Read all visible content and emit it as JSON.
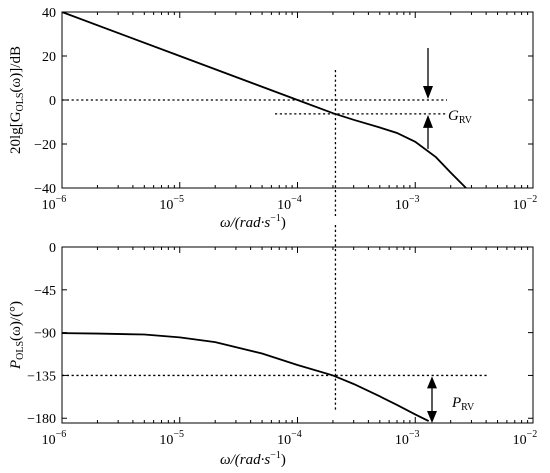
{
  "chart_data": [
    {
      "type": "line",
      "panel": "magnitude",
      "x_scale": "log",
      "xlim": [
        1e-06,
        0.01
      ],
      "ylim": [
        -40,
        40
      ],
      "x_ticks": [
        1e-06,
        1e-05,
        0.0001,
        0.001,
        0.01
      ],
      "x_tick_labels": [
        {
          "base": "10",
          "exp": "−6"
        },
        {
          "base": "10",
          "exp": "−5"
        },
        {
          "base": "10",
          "exp": "−4"
        },
        {
          "base": "10",
          "exp": "−3"
        },
        {
          "base": "10",
          "exp": "−2"
        }
      ],
      "y_ticks": [
        40,
        20,
        0,
        -20,
        -40
      ],
      "y_tick_labels": [
        "40",
        "20",
        "0",
        "−20",
        "−40"
      ],
      "xlabel": {
        "pre": "ω/(rad·s",
        "exp": "−1",
        "post": ")"
      },
      "ylabel": {
        "pre": "20lg[G",
        "sub": "OLS",
        "post": "(ω)]/dB"
      },
      "series": [
        {
          "x": [
            1e-06,
            1e-05,
            0.0001,
            0.0002,
            0.0003,
            0.0005,
            0.0007,
            0.001,
            0.0015,
            0.002,
            0.0027
          ],
          "y": [
            40,
            20,
            0,
            -6,
            -9,
            -12.5,
            -15,
            -19,
            -26,
            -33,
            -40
          ]
        }
      ],
      "crossover_omega": 0.00021,
      "annotation": {
        "pre": "G",
        "sub": "RV"
      },
      "gain_margin_levels": [
        0,
        -6.3
      ]
    },
    {
      "type": "line",
      "panel": "phase",
      "x_scale": "log",
      "xlim": [
        1e-06,
        0.01
      ],
      "ylim": [
        -185,
        0
      ],
      "x_ticks": [
        1e-06,
        1e-05,
        0.0001,
        0.001,
        0.01
      ],
      "x_tick_labels": [
        {
          "base": "10",
          "exp": "−6"
        },
        {
          "base": "10",
          "exp": "−5"
        },
        {
          "base": "10",
          "exp": "−4"
        },
        {
          "base": "10",
          "exp": "−3"
        },
        {
          "base": "10",
          "exp": "−2"
        }
      ],
      "y_ticks": [
        0,
        -45,
        -90,
        -135,
        -180
      ],
      "y_tick_labels": [
        "0",
        "−45",
        "−90",
        "−135",
        "−180"
      ],
      "xlabel": {
        "pre": "ω/(rad·s",
        "exp": "−1",
        "post": ")"
      },
      "ylabel": {
        "pre": "P",
        "sub": "OLS",
        "post": "(ω)/(°)"
      },
      "series": [
        {
          "x": [
            1e-06,
            2e-06,
            5e-06,
            1e-05,
            2e-05,
            5e-05,
            0.0001,
            0.0002,
            0.0003,
            0.0005,
            0.0007,
            0.001,
            0.0013
          ],
          "y": [
            -90.5,
            -91,
            -92,
            -95,
            -100,
            -112,
            -124,
            -135,
            -144,
            -157,
            -166,
            -176,
            -183
          ]
        }
      ],
      "crossover_omega": 0.00021,
      "annotation": {
        "pre": "P",
        "sub": "RV"
      },
      "phase_margin_levels": [
        -135,
        -180
      ]
    }
  ]
}
